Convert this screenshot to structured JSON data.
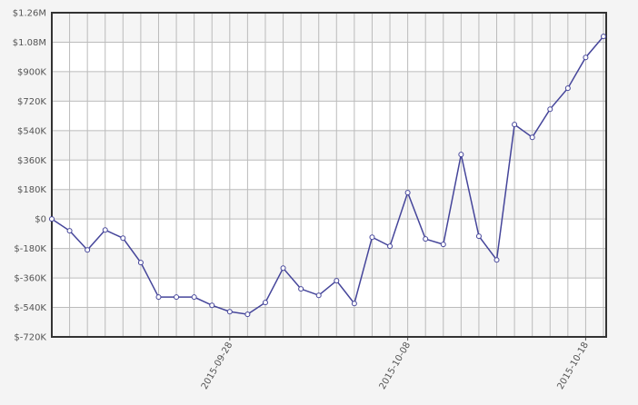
{
  "chart_data": {
    "type": "line",
    "x": [
      "2015-09-18",
      "2015-09-19",
      "2015-09-20",
      "2015-09-21",
      "2015-09-22",
      "2015-09-23",
      "2015-09-24",
      "2015-09-25",
      "2015-09-26",
      "2015-09-27",
      "2015-09-28",
      "2015-09-29",
      "2015-09-30",
      "2015-10-01",
      "2015-10-02",
      "2015-10-03",
      "2015-10-04",
      "2015-10-05",
      "2015-10-06",
      "2015-10-07",
      "2015-10-08",
      "2015-10-09",
      "2015-10-10",
      "2015-10-11",
      "2015-10-12",
      "2015-10-13",
      "2015-10-14",
      "2015-10-15",
      "2015-10-16",
      "2015-10-17",
      "2015-10-18",
      "2015-10-19"
    ],
    "series": [
      {
        "color": "#45459a",
        "values": [
          0,
          -72000,
          -189000,
          -67000,
          -117000,
          -266000,
          -477000,
          -477000,
          -477000,
          -527000,
          -566000,
          -582000,
          -510000,
          -300000,
          -427000,
          -466000,
          -377000,
          -516000,
          -111000,
          -166000,
          161000,
          -122000,
          -155000,
          394000,
          -105000,
          -250000,
          577000,
          499000,
          671000,
          799000,
          987000,
          1115000
        ]
      }
    ],
    "ylim": [
      -720000,
      1260000
    ],
    "yticks": [
      {
        "value": -720000,
        "label": "$-720K"
      },
      {
        "value": -540000,
        "label": "$-540K"
      },
      {
        "value": -360000,
        "label": "$-360K"
      },
      {
        "value": -180000,
        "label": "$-180K"
      },
      {
        "value": 0,
        "label": "$0"
      },
      {
        "value": 180000,
        "label": "$180K"
      },
      {
        "value": 360000,
        "label": "$360K"
      },
      {
        "value": 540000,
        "label": "$540K"
      },
      {
        "value": 720000,
        "label": "$720K"
      },
      {
        "value": 900000,
        "label": "$900K"
      },
      {
        "value": 1080000,
        "label": "$1.08M"
      },
      {
        "value": 1260000,
        "label": "$1.26M"
      }
    ],
    "xticks": [
      "2015-09-28",
      "2015-10-08",
      "2015-10-18"
    ],
    "grid": true
  }
}
